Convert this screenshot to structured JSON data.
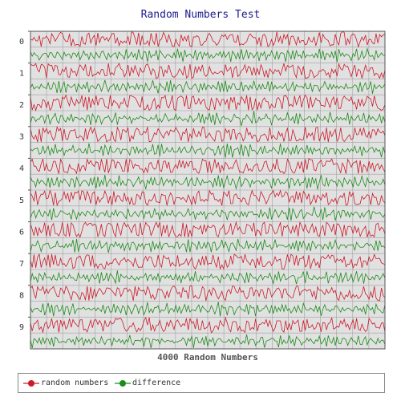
{
  "chart_data": {
    "type": "line",
    "title": "Random Numbers Test",
    "xlabel": "4000 Random Numbers",
    "ylabel": "",
    "categories": [
      "0",
      "1",
      "2",
      "3",
      "4",
      "5",
      "6",
      "7",
      "8",
      "9"
    ],
    "ylim": [
      0,
      10
    ],
    "grid": true,
    "legend_position": "bottom",
    "series": [
      {
        "name": "random numbers",
        "color": "#cc1a2a"
      },
      {
        "name": "difference",
        "color": "#1a8c1a"
      }
    ],
    "background": "#e1e1e1",
    "grid_color": "#a0a0a0"
  }
}
